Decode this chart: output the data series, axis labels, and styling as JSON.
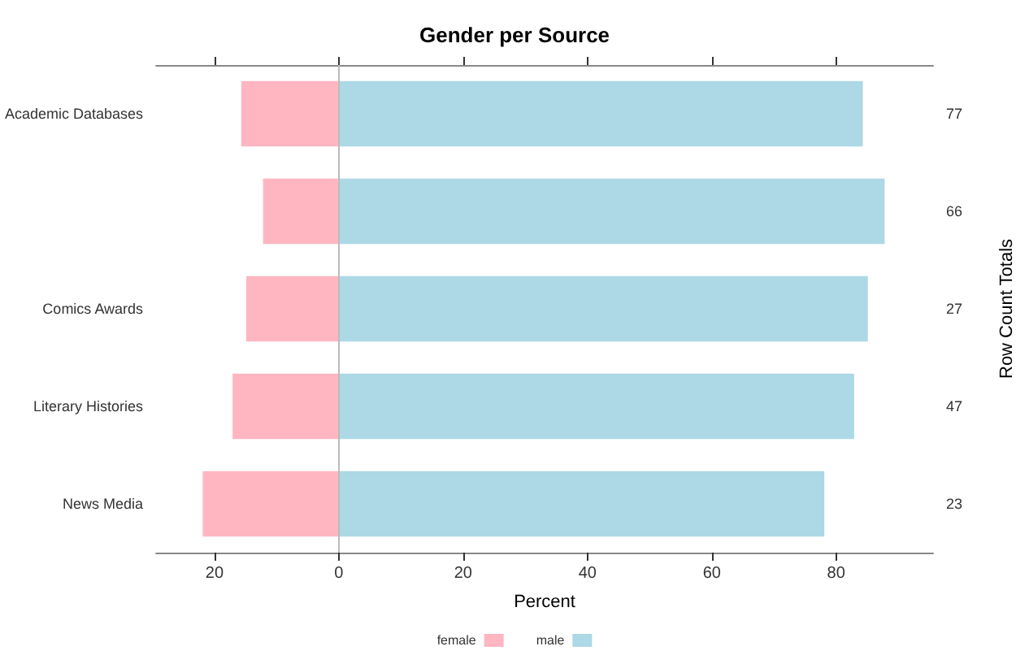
{
  "chart_data": {
    "type": "bar",
    "orientation": "horizontal",
    "stacked": true,
    "title": "Gender per Source",
    "xlabel": "Percent",
    "y2label": "Row Count Totals",
    "categories": [
      "Academic Databases",
      null,
      "Comics Awards",
      "Literary Histories",
      "News Media"
    ],
    "y2_categories": [
      "77",
      "66",
      "27",
      "47",
      "23"
    ],
    "series": [
      {
        "name": "female",
        "color": "#ffb6c1",
        "values": [
          -15.7,
          -12.2,
          -14.9,
          -17.1,
          -21.9
        ]
      },
      {
        "name": "male",
        "color": "#add8e6",
        "values": [
          84.3,
          87.8,
          85.1,
          82.9,
          78.1
        ]
      }
    ],
    "xlim": [
      -29.4,
      95.6
    ],
    "xticks": [
      {
        "value": -20,
        "label": "20"
      },
      0,
      20,
      40,
      60,
      80
    ],
    "ref_lines": [
      {
        "axis": "x",
        "value": 0,
        "color": "#bbbbbb"
      }
    ],
    "legend": "bottom",
    "grid": false
  }
}
